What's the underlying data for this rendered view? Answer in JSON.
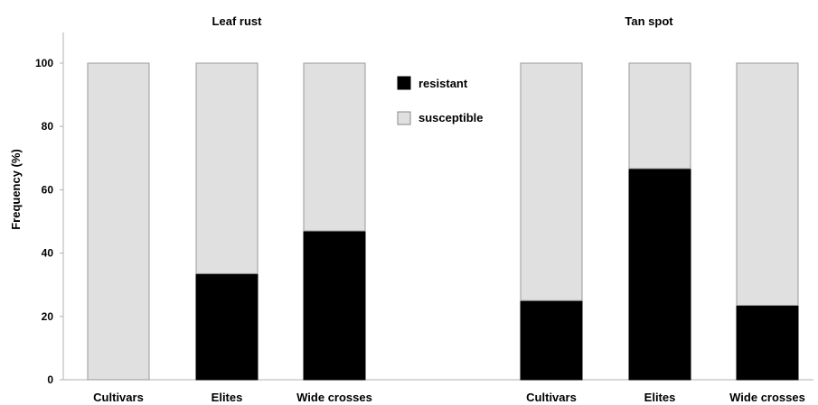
{
  "chart_data": {
    "type": "bar",
    "stacked": true,
    "ylabel": "Frequency (%)",
    "ylim": [
      0,
      110
    ],
    "yticks": [
      0,
      20,
      40,
      60,
      80,
      100
    ],
    "grid": false,
    "legend_position": "top-center",
    "series_colors": {
      "resistant": "#000000",
      "susceptible": "#e0e0e0"
    },
    "legend": [
      "resistant",
      "susceptible"
    ],
    "panels": [
      {
        "title": "Leaf rust",
        "categories": [
          "Cultivars",
          "Elites",
          "Wide crosses"
        ],
        "series": [
          {
            "name": "resistant",
            "values": [
              0,
              33.5,
              47
            ]
          },
          {
            "name": "susceptible",
            "values": [
              100,
              66.5,
              53
            ]
          }
        ]
      },
      {
        "title": "Tan spot",
        "categories": [
          "Cultivars",
          "Elites",
          "Wide crosses"
        ],
        "series": [
          {
            "name": "resistant",
            "values": [
              25,
              66.7,
              23.5
            ]
          },
          {
            "name": "susceptible",
            "values": [
              75,
              33.3,
              76.5
            ]
          }
        ]
      }
    ]
  }
}
